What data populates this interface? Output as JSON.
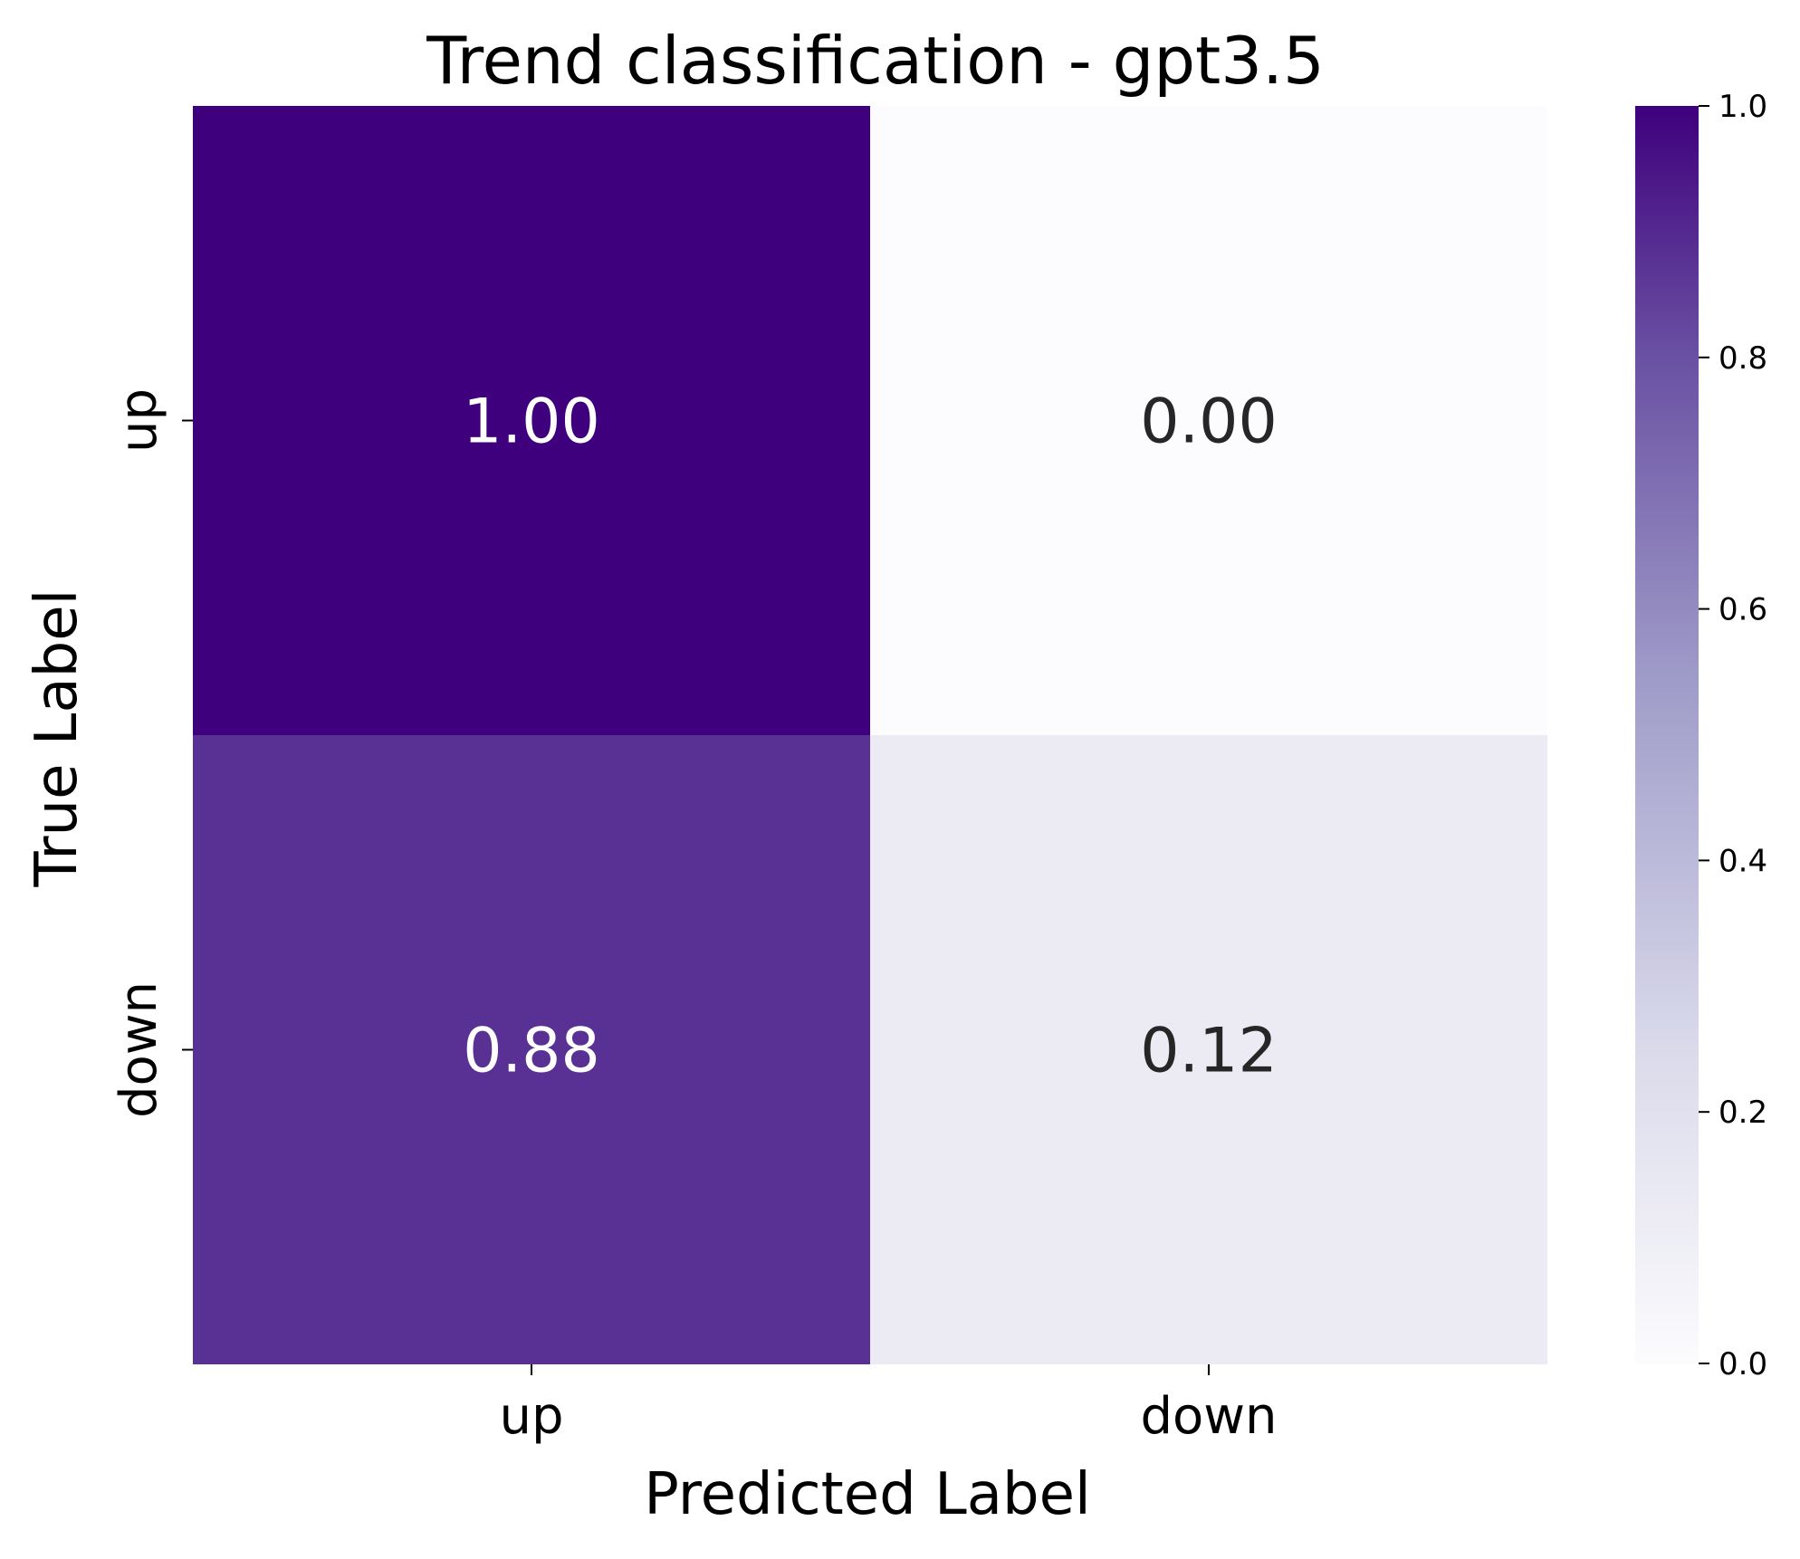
{
  "chart_data": {
    "type": "heatmap",
    "title": "Trend classification - gpt3.5",
    "xlabel": "Predicted Label",
    "ylabel": "True Label",
    "x_categories": [
      "up",
      "down"
    ],
    "y_categories": [
      "up",
      "down"
    ],
    "values": [
      [
        1.0,
        0.0
      ],
      [
        0.88,
        0.12
      ]
    ],
    "value_labels": [
      [
        "1.00",
        "0.00"
      ],
      [
        "0.88",
        "0.12"
      ]
    ],
    "colormap": "Purples",
    "colorbar": {
      "range": [
        0.0,
        1.0
      ],
      "ticks": [
        "0.0",
        "0.2",
        "0.4",
        "0.6",
        "0.8",
        "1.0"
      ],
      "position": "right"
    },
    "grid": false
  },
  "colors": {
    "low": "#fcfbfd",
    "mid_low": "#dadaeb",
    "mid": "#9e9ac8",
    "mid_high": "#6a51a3",
    "high": "#3f007d",
    "dark_text": "#262626",
    "light_text": "#ffffff",
    "axis": "#000000"
  }
}
